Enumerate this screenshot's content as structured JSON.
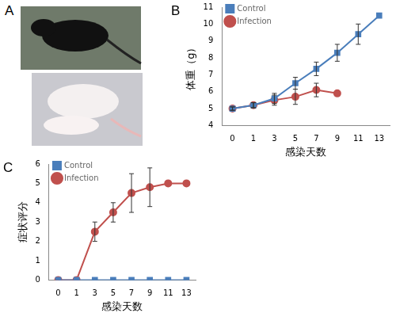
{
  "photo_panel": {
    "panel_label": "A"
  },
  "chart_data": [
    {
      "type": "line",
      "panel_label": "B",
      "x_label": "感染天数",
      "y_label": "体重（g）",
      "categories": [
        "0",
        "1",
        "3",
        "5",
        "7",
        "9",
        "11",
        "13"
      ],
      "series": [
        {
          "name": "Control",
          "color": "#4a7ebb",
          "marker": "square",
          "values": [
            5.0,
            5.2,
            5.6,
            6.5,
            7.35,
            8.3,
            9.4,
            10.5
          ],
          "errors": [
            0.1,
            0.15,
            0.3,
            0.35,
            0.4,
            0.5,
            0.6,
            null
          ]
        },
        {
          "name": "Infection",
          "color": "#c0504d",
          "marker": "circle",
          "values": [
            5.0,
            5.2,
            5.5,
            5.7,
            6.1,
            5.9,
            null,
            null
          ],
          "errors": [
            0.1,
            0.15,
            0.3,
            0.45,
            0.4,
            null,
            null,
            null
          ]
        }
      ],
      "ylim": [
        4,
        11
      ],
      "yticks": [
        4,
        5,
        6,
        7,
        8,
        9,
        10,
        11
      ],
      "grid": false,
      "legend": "upper left"
    },
    {
      "type": "line",
      "panel_label": "C",
      "x_label": "感染天数",
      "y_label": "症状评分",
      "categories": [
        "0",
        "1",
        "3",
        "5",
        "7",
        "9",
        "11",
        "13"
      ],
      "series": [
        {
          "name": "Control",
          "color": "#4a7ebb",
          "marker": "square",
          "values": [
            0,
            0,
            0,
            0,
            0,
            0,
            0,
            0
          ],
          "errors": [
            null,
            null,
            null,
            null,
            null,
            null,
            null,
            null
          ]
        },
        {
          "name": "Infection",
          "color": "#c0504d",
          "marker": "circle",
          "values": [
            0,
            0,
            2.5,
            3.5,
            4.5,
            4.8,
            5,
            5
          ],
          "errors": [
            null,
            null,
            0.5,
            0.5,
            1.0,
            1.0,
            null,
            null
          ]
        }
      ],
      "ylim": [
        0,
        6
      ],
      "yticks": [
        0,
        1,
        2,
        3,
        4,
        5,
        6
      ],
      "grid": false,
      "legend": "upper left"
    }
  ]
}
